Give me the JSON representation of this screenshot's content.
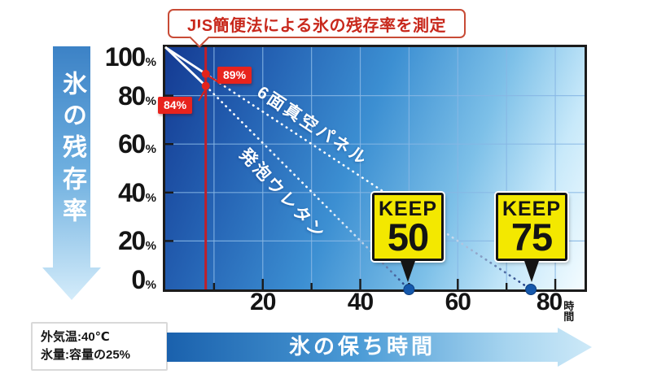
{
  "title": {
    "text": "JIS簡便法による氷の残存率を測定"
  },
  "left_axis": {
    "label": "氷の残存率"
  },
  "bottom_axis": {
    "label": "氷の保ち時間",
    "unit": "時間"
  },
  "conditions": {
    "line1": "外気温:40℃",
    "line2": "氷量:容量の25%"
  },
  "colors": {
    "plot_dark_blue": "#143a92",
    "plot_light_blue": "#f4fcff",
    "reference_red": "#c11e28",
    "label_red": "#e8231d",
    "keep_yellow": "#f3e800",
    "end_dot_blue": "#1558ab",
    "line_white": "#ffffff"
  },
  "chart_data": {
    "type": "line",
    "title": "JIS簡便法による氷の残存率を測定",
    "xlabel": "氷の保ち時間(時間)",
    "ylabel": "氷の残存率(%)",
    "xlim": [
      0,
      86
    ],
    "ylim": [
      0,
      100
    ],
    "x_ticks": [
      20,
      40,
      60,
      80
    ],
    "y_ticks": [
      100,
      80,
      60,
      40,
      20,
      0
    ],
    "grid": {
      "x_interval": 10,
      "x_max": 80,
      "y_interval": 20,
      "y_max": 80
    },
    "reference_line_x": 8.3,
    "legend_position": "on-line",
    "series": [
      {
        "name": "6面真空パネル",
        "points": [
          [
            0,
            100
          ],
          [
            8.3,
            89
          ],
          [
            75,
            0
          ]
        ],
        "measured_label": "89%",
        "keep": {
          "word": "KEEP",
          "value": "75"
        }
      },
      {
        "name": "発泡ウレタン",
        "points": [
          [
            0,
            100
          ],
          [
            8.3,
            84
          ],
          [
            50,
            0
          ]
        ],
        "measured_label": "84%",
        "keep": {
          "word": "KEEP",
          "value": "50"
        }
      }
    ]
  }
}
